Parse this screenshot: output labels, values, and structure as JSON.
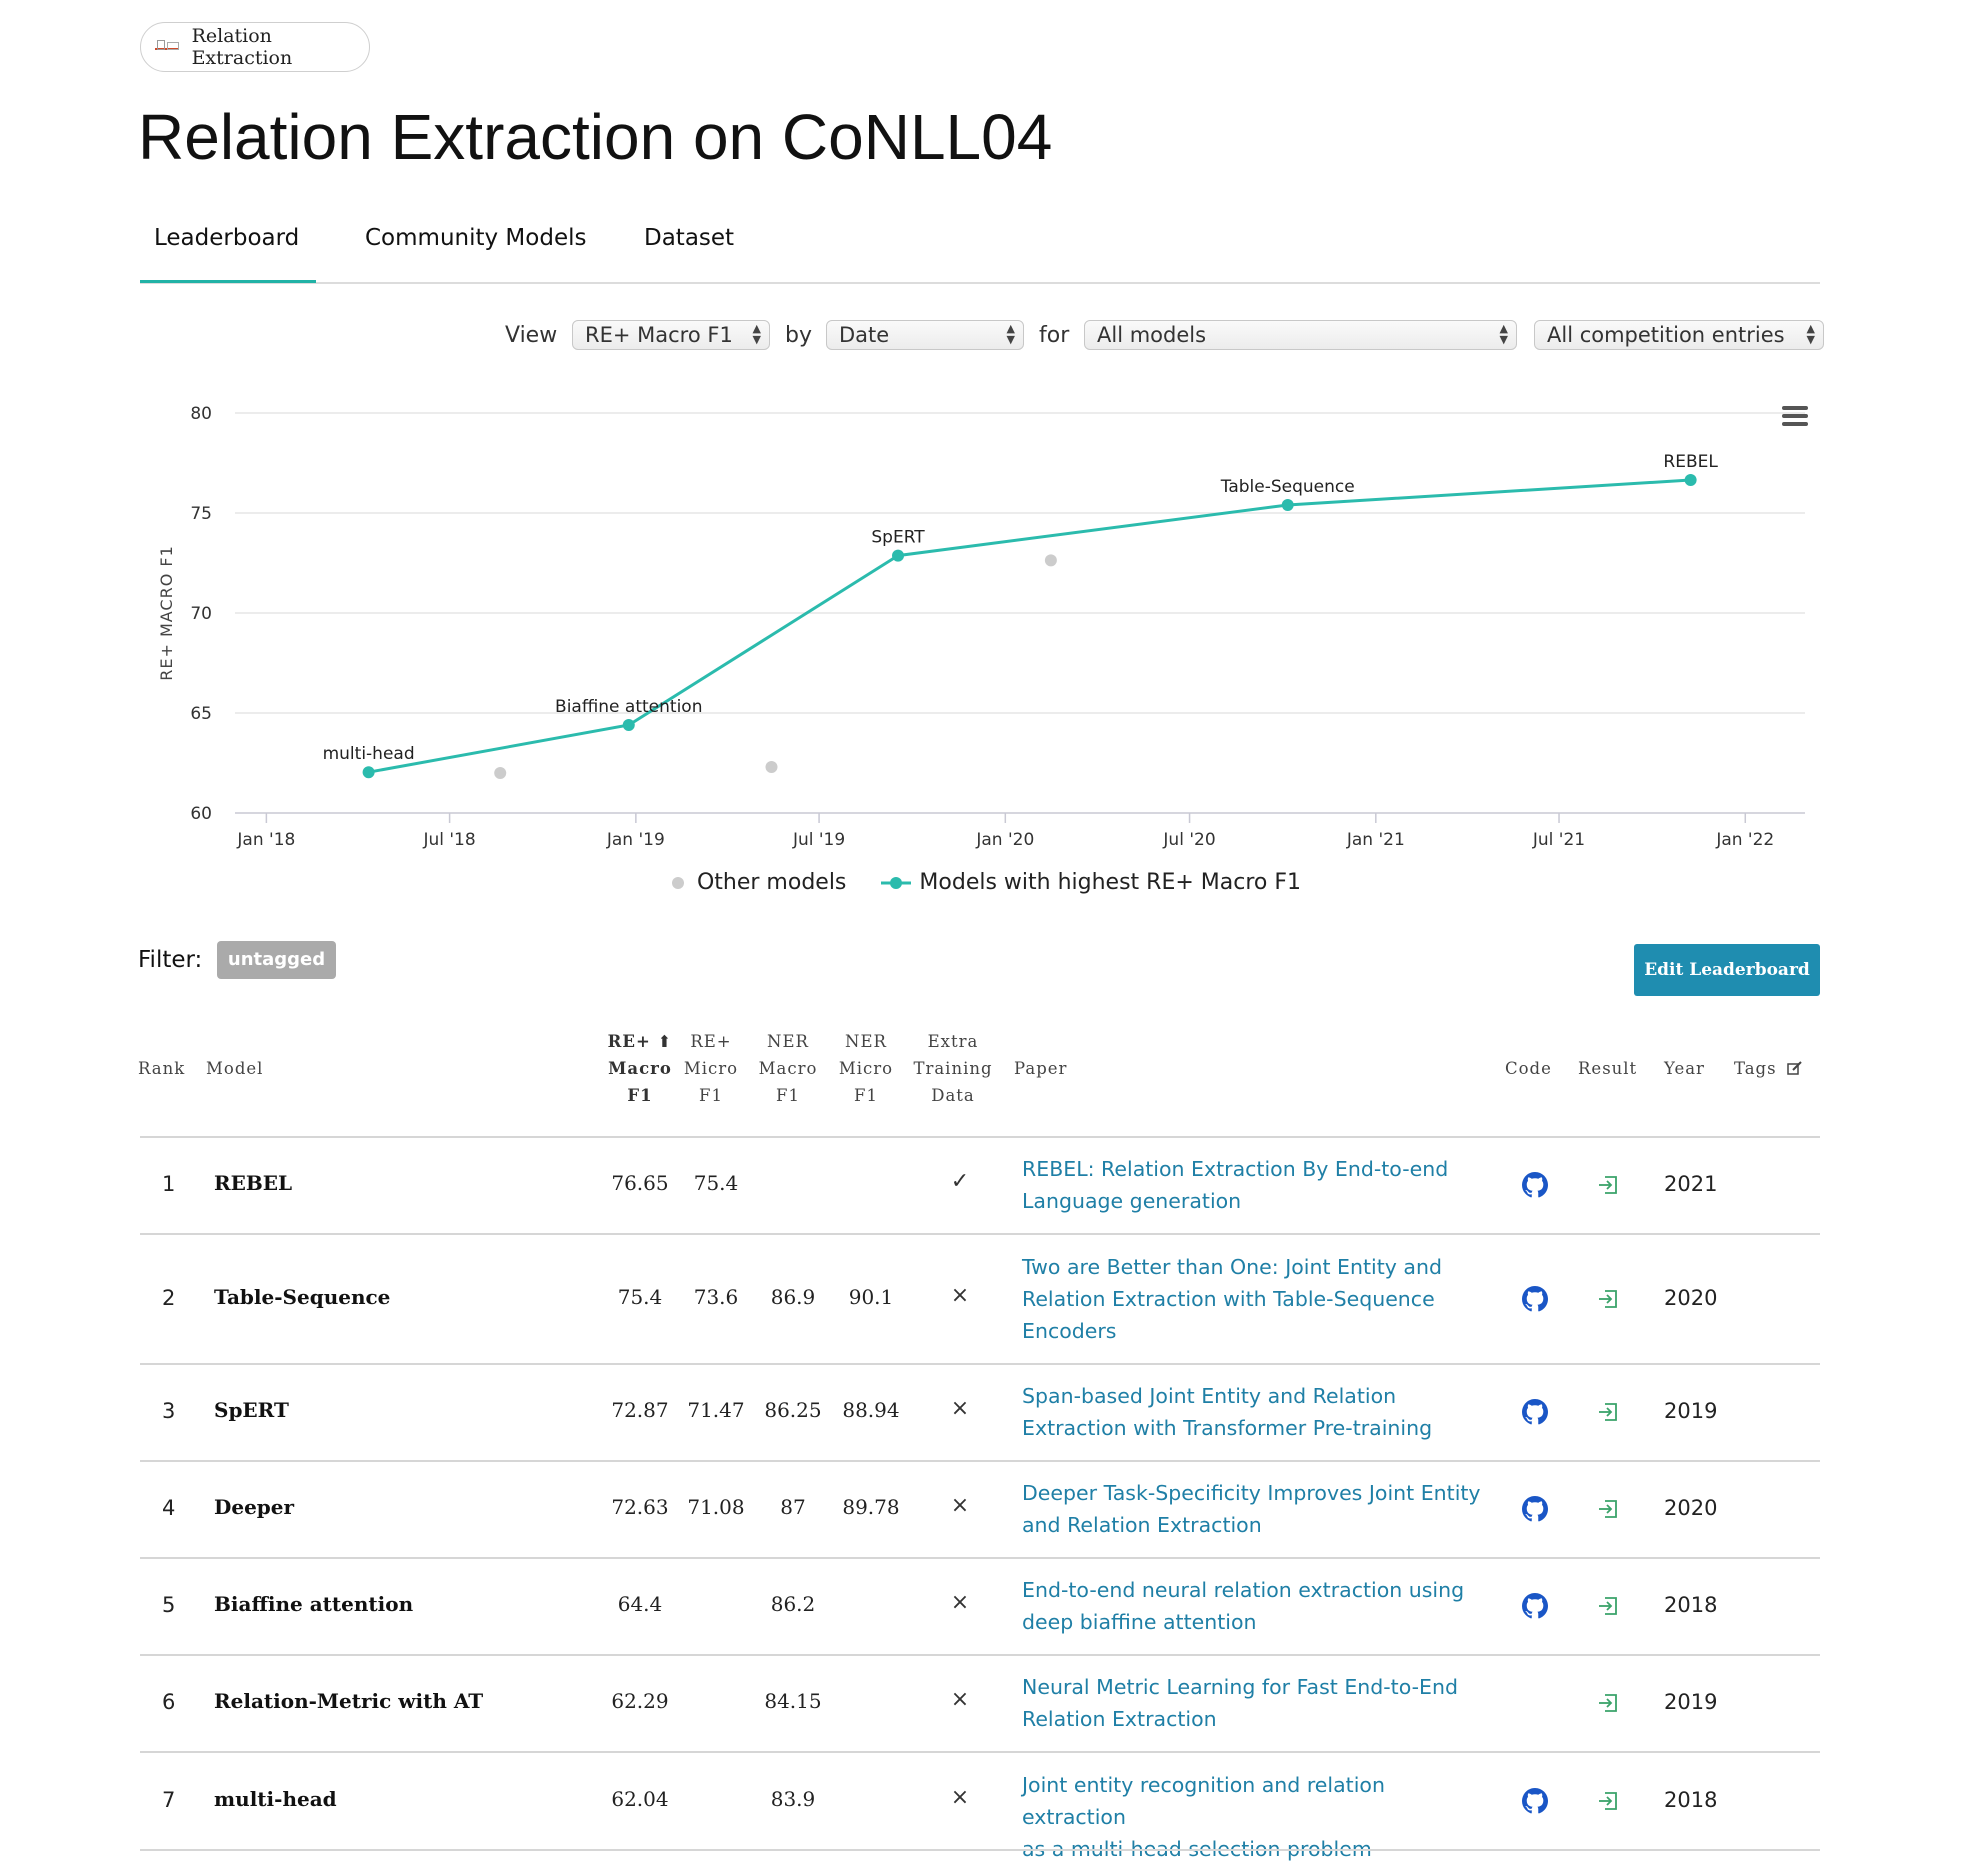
{
  "breadcrumb": {
    "label": "Relation Extraction"
  },
  "page_title": "Relation Extraction on CoNLL04",
  "tabs": [
    {
      "label": "Leaderboard",
      "active": true
    },
    {
      "label": "Community Models",
      "active": false
    },
    {
      "label": "Dataset",
      "active": false
    }
  ],
  "controls": {
    "view_label": "View",
    "metric_value": "RE+ Macro F1",
    "by_label": "by",
    "by_value": "Date",
    "for_label": "for",
    "models_value": "All models",
    "entries_value": "All competition entries"
  },
  "chart_data": {
    "type": "line",
    "ylabel": "RE+ MACRO F1",
    "ylim": [
      60,
      80
    ],
    "yticks": [
      "60",
      "65",
      "70",
      "75",
      "80"
    ],
    "xticks": [
      "Jan '18",
      "Jul '18",
      "Jan '19",
      "Jul '19",
      "Jan '20",
      "Jul '20",
      "Jan '21",
      "Jul '21",
      "Jan '22"
    ],
    "xlim": [
      "2017-12-01",
      "2022-03-01"
    ],
    "grid": true,
    "legend_position": "bottom-center",
    "series": [
      {
        "name": "Models with highest RE+ Macro F1",
        "color": "#2bbbad",
        "points": [
          {
            "x": "2018-04-12",
            "y": 62.04,
            "label": "multi-head"
          },
          {
            "x": "2018-12-25",
            "y": 64.4,
            "label": "Biaffine attention"
          },
          {
            "x": "2019-09-17",
            "y": 72.87,
            "label": "SpERT"
          },
          {
            "x": "2020-10-06",
            "y": 75.4,
            "label": "Table-Sequence"
          },
          {
            "x": "2021-11-08",
            "y": 76.65,
            "label": "REBEL"
          }
        ]
      },
      {
        "name": "Other models",
        "color": "#cccccc",
        "points": [
          {
            "x": "2018-08-20",
            "y": 62.0
          },
          {
            "x": "2019-05-15",
            "y": 62.3
          },
          {
            "x": "2020-02-15",
            "y": 72.63
          }
        ]
      }
    ]
  },
  "menu_icon": "hamburger-menu-icon",
  "filter": {
    "label": "Filter:",
    "badge": "untagged"
  },
  "edit_button": "Edit Leaderboard",
  "table": {
    "headers": {
      "rank": "Rank",
      "model": "Model",
      "re_macro": [
        "RE+ ⬆",
        "Macro",
        "F1"
      ],
      "re_micro": [
        "RE+",
        "Micro",
        "F1"
      ],
      "ner_macro": [
        "NER",
        "Macro",
        "F1"
      ],
      "ner_micro": [
        "NER",
        "Micro",
        "F1"
      ],
      "extra": [
        "Extra",
        "Training",
        "Data"
      ],
      "paper": "Paper",
      "code": "Code",
      "result": "Result",
      "year": "Year",
      "tags": "Tags"
    },
    "rows": [
      {
        "rank": "1",
        "model": "REBEL",
        "re_macro": "76.65",
        "re_micro": "75.4",
        "ner_macro": "",
        "ner_micro": "",
        "extra": "✓",
        "paper_lines": [
          "REBEL: Relation Extraction By End-to-end",
          "Language generation"
        ],
        "code": true,
        "year": "2021"
      },
      {
        "rank": "2",
        "model": "Table-Sequence",
        "re_macro": "75.4",
        "re_micro": "73.6",
        "ner_macro": "86.9",
        "ner_micro": "90.1",
        "extra": "×",
        "paper_lines": [
          "Two are Better than One: Joint Entity and",
          "Relation Extraction with Table-Sequence",
          "Encoders"
        ],
        "code": true,
        "year": "2020"
      },
      {
        "rank": "3",
        "model": "SpERT",
        "re_macro": "72.87",
        "re_micro": "71.47",
        "ner_macro": "86.25",
        "ner_micro": "88.94",
        "extra": "×",
        "paper_lines": [
          "Span-based Joint Entity and Relation",
          "Extraction with Transformer Pre-training"
        ],
        "code": true,
        "year": "2019"
      },
      {
        "rank": "4",
        "model": "Deeper",
        "re_macro": "72.63",
        "re_micro": "71.08",
        "ner_macro": "87",
        "ner_micro": "89.78",
        "extra": "×",
        "paper_lines": [
          "Deeper Task-Specificity Improves Joint Entity",
          "and Relation Extraction"
        ],
        "code": true,
        "year": "2020"
      },
      {
        "rank": "5",
        "model": "Biaffine attention",
        "re_macro": "64.4",
        "re_micro": "",
        "ner_macro": "86.2",
        "ner_micro": "",
        "extra": "×",
        "paper_lines": [
          "End-to-end neural relation extraction using",
          "deep biaffine attention"
        ],
        "code": true,
        "year": "2018"
      },
      {
        "rank": "6",
        "model": "Relation-Metric with AT",
        "re_macro": "62.29",
        "re_micro": "",
        "ner_macro": "84.15",
        "ner_micro": "",
        "extra": "×",
        "paper_lines": [
          "Neural Metric Learning for Fast End-to-End",
          "Relation Extraction"
        ],
        "code": false,
        "year": "2019"
      },
      {
        "rank": "7",
        "model": "multi-head",
        "re_macro": "62.04",
        "re_micro": "",
        "ner_macro": "83.9",
        "ner_micro": "",
        "extra": "×",
        "paper_lines": [
          "Joint entity recognition and relation extraction",
          "as a multi-head selection problem"
        ],
        "code": true,
        "year": "2018"
      }
    ]
  },
  "colors": {
    "accent": "#2bbbad",
    "link": "#1f7fa6",
    "button": "#1f8db0",
    "github": "#1a56c6",
    "result": "#3aa36a"
  }
}
